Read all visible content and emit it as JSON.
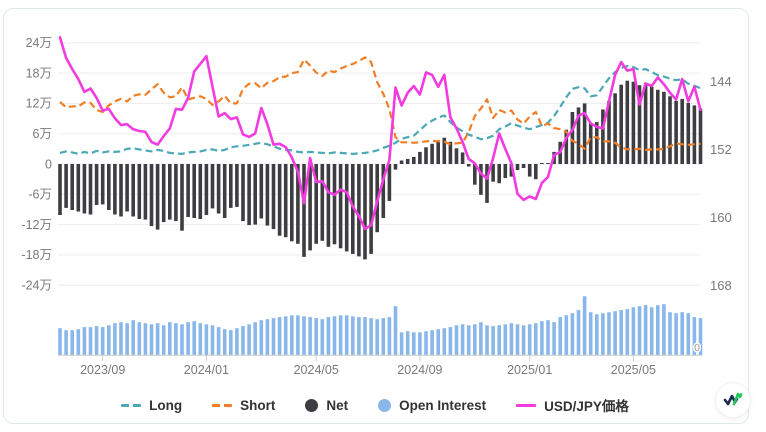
{
  "chart_data": {
    "type": "mixed",
    "x": {
      "dates": [
        "2023/07/18",
        "2023/07/25",
        "2023/08/01",
        "2023/08/08",
        "2023/08/15",
        "2023/08/22",
        "2023/08/29",
        "2023/09/05",
        "2023/09/12",
        "2023/09/19",
        "2023/09/26",
        "2023/10/03",
        "2023/10/10",
        "2023/10/17",
        "2023/10/24",
        "2023/10/31",
        "2023/11/07",
        "2023/11/14",
        "2023/11/21",
        "2023/11/28",
        "2023/12/05",
        "2023/12/12",
        "2023/12/19",
        "2023/12/26",
        "2024/01/02",
        "2024/01/09",
        "2024/01/16",
        "2024/01/23",
        "2024/01/30",
        "2024/02/06",
        "2024/02/13",
        "2024/02/20",
        "2024/02/27",
        "2024/03/05",
        "2024/03/12",
        "2024/03/19",
        "2024/03/26",
        "2024/04/02",
        "2024/04/09",
        "2024/04/16",
        "2024/04/23",
        "2024/04/30",
        "2024/05/07",
        "2024/05/14",
        "2024/05/21",
        "2024/05/28",
        "2024/06/04",
        "2024/06/11",
        "2024/06/18",
        "2024/06/25",
        "2024/07/02",
        "2024/07/09",
        "2024/07/16",
        "2024/07/23",
        "2024/07/30",
        "2024/08/06",
        "2024/08/13",
        "2024/08/20",
        "2024/08/27",
        "2024/09/03",
        "2024/09/10",
        "2024/09/17",
        "2024/09/24",
        "2024/10/01",
        "2024/10/08",
        "2024/10/15",
        "2024/10/22",
        "2024/10/29",
        "2024/11/05",
        "2024/11/12",
        "2024/11/19",
        "2024/11/26",
        "2024/12/03",
        "2024/12/10",
        "2024/12/17",
        "2024/12/24",
        "2024/12/31",
        "2025/01/07",
        "2025/01/14",
        "2025/01/21",
        "2025/01/28",
        "2025/02/04",
        "2025/02/11",
        "2025/02/18",
        "2025/02/25",
        "2025/03/04",
        "2025/03/11",
        "2025/03/18",
        "2025/03/25",
        "2025/04/01",
        "2025/04/08",
        "2025/04/15",
        "2025/04/22",
        "2025/04/29",
        "2025/05/06",
        "2025/05/13",
        "2025/05/20",
        "2025/05/27",
        "2025/06/03",
        "2025/06/10",
        "2025/06/17",
        "2025/06/24",
        "2025/07/01",
        "2025/07/08",
        "2025/07/15",
        "2025/07/22"
      ],
      "tick_labels": [
        "2023/09",
        "2024/01",
        "2024/05",
        "2024/09",
        "2025/01",
        "2025/05"
      ],
      "tick_indices": [
        7,
        24,
        42,
        59,
        77,
        94
      ]
    },
    "left_axis": {
      "unit": "万",
      "ticks": [
        "24万",
        "18万",
        "12万",
        "6万",
        "0",
        "-6万",
        "-12万",
        "-18万",
        "-24万"
      ],
      "tick_values": [
        24,
        18,
        12,
        6,
        0,
        -6,
        -12,
        -18,
        -24
      ]
    },
    "right_axis": {
      "ticks": [
        144,
        152,
        160,
        168
      ],
      "inverted": true
    },
    "oi_axis": {
      "min_label": "0"
    },
    "series": [
      {
        "name": "Long",
        "type": "line",
        "style": "dashed",
        "axis": "left",
        "color": "#4BA8B6",
        "values": [
          2.2,
          2.5,
          2.3,
          2.0,
          2.4,
          2.1,
          2.6,
          2.3,
          2.5,
          2.4,
          2.5,
          3.0,
          3.1,
          2.9,
          2.7,
          2.5,
          2.8,
          2.6,
          2.2,
          2.1,
          2.0,
          2.3,
          2.4,
          2.5,
          2.8,
          2.9,
          2.6,
          2.8,
          3.3,
          3.5,
          3.6,
          3.8,
          4.0,
          4.2,
          3.9,
          3.5,
          3.0,
          2.8,
          2.7,
          2.4,
          2.3,
          2.4,
          2.3,
          2.2,
          2.1,
          2.3,
          2.2,
          2.1,
          2.0,
          2.1,
          2.2,
          2.4,
          2.7,
          3.2,
          3.6,
          4.2,
          5.0,
          5.3,
          5.6,
          6.7,
          7.8,
          8.6,
          9.2,
          9.6,
          8.3,
          7.2,
          6.5,
          5.8,
          5.4,
          4.9,
          5.1,
          5.6,
          6.9,
          7.4,
          8.1,
          7.6,
          7.2,
          6.9,
          7.3,
          7.7,
          8.2,
          9.5,
          11.3,
          13.2,
          14.9,
          15.2,
          15.0,
          13.4,
          13.6,
          15.3,
          17.0,
          18.2,
          19.0,
          19.4,
          19.2,
          18.6,
          18.8,
          18.2,
          17.6,
          17.3,
          16.9,
          16.6,
          16.8,
          15.9,
          15.5,
          15.0
        ]
      },
      {
        "name": "Short",
        "type": "line",
        "style": "dashed",
        "axis": "left",
        "color": "#F07E26",
        "values": [
          12.3,
          11.2,
          11.4,
          11.4,
          12.2,
          12.1,
          10.7,
          10.3,
          11.6,
          12.4,
          12.9,
          12.4,
          13.5,
          13.8,
          13.7,
          14.8,
          15.8,
          14.1,
          13.2,
          13.4,
          15.2,
          12.8,
          13.1,
          13.4,
          12.9,
          11.7,
          12.4,
          13.5,
          12.0,
          12.0,
          14.9,
          15.9,
          16.0,
          15.0,
          16.1,
          16.4,
          17.2,
          17.3,
          18.0,
          18.2,
          20.7,
          19.5,
          18.1,
          17.4,
          18.5,
          18.2,
          18.9,
          19.4,
          19.8,
          20.4,
          21.1,
          20.2,
          16.2,
          13.9,
          10.9,
          5.3,
          4.3,
          4.3,
          4.2,
          4.3,
          4.5,
          4.6,
          4.5,
          4.4,
          3.9,
          4.1,
          4.2,
          6.3,
          9.5,
          11.0,
          12.8,
          9.1,
          10.7,
          10.2,
          10.6,
          8.8,
          8.0,
          9.4,
          10.3,
          7.5,
          8.0,
          7.1,
          6.9,
          6.4,
          4.6,
          4.0,
          3.0,
          5.3,
          5.3,
          4.5,
          4.5,
          4.2,
          3.3,
          2.9,
          2.9,
          3.0,
          2.8,
          2.9,
          2.9,
          3.0,
          3.5,
          4.1,
          3.9,
          3.8,
          3.9,
          4.0
        ]
      },
      {
        "name": "Net",
        "type": "bar",
        "axis": "left",
        "color": "#3E3E42",
        "values": [
          -10.1,
          -8.7,
          -9.1,
          -9.4,
          -9.8,
          -10.0,
          -8.1,
          -8.0,
          -9.1,
          -10.0,
          -10.4,
          -9.4,
          -10.4,
          -10.9,
          -11.0,
          -12.3,
          -13.0,
          -11.5,
          -11.0,
          -11.3,
          -13.2,
          -10.5,
          -10.7,
          -10.9,
          -10.1,
          -8.8,
          -9.8,
          -10.7,
          -8.7,
          -8.5,
          -11.3,
          -12.1,
          -12.0,
          -10.8,
          -12.2,
          -12.9,
          -14.2,
          -14.5,
          -15.3,
          -15.8,
          -18.4,
          -17.1,
          -15.8,
          -15.2,
          -16.4,
          -15.9,
          -16.7,
          -17.3,
          -17.8,
          -18.3,
          -18.9,
          -17.8,
          -13.5,
          -10.7,
          -7.3,
          -1.1,
          0.7,
          1.0,
          1.4,
          2.4,
          3.3,
          4.0,
          4.7,
          5.2,
          4.4,
          3.1,
          2.3,
          -0.5,
          -4.1,
          -6.1,
          -7.7,
          -3.5,
          -3.8,
          -2.8,
          -2.5,
          -1.2,
          -0.8,
          -2.5,
          -3.0,
          0.2,
          0.2,
          2.4,
          4.4,
          6.8,
          10.3,
          11.2,
          12.0,
          8.1,
          8.3,
          10.8,
          12.5,
          14.0,
          15.7,
          16.5,
          16.3,
          15.6,
          16.0,
          15.3,
          14.7,
          14.3,
          13.4,
          12.5,
          12.9,
          12.1,
          11.6,
          11.0
        ]
      },
      {
        "name": "Open Interest",
        "type": "bar",
        "axis": "oi",
        "color": "#8AB7E9",
        "values": [
          15.9,
          14.7,
          14.7,
          15.3,
          16.5,
          16.5,
          17.1,
          16.5,
          17.6,
          18.8,
          19.4,
          18.8,
          20.6,
          19.4,
          18.8,
          18.2,
          18.8,
          17.6,
          19.4,
          18.8,
          18.2,
          19.4,
          20.0,
          18.8,
          18.2,
          17.6,
          16.5,
          15.3,
          14.7,
          15.9,
          17.1,
          18.2,
          19.4,
          20.6,
          21.2,
          21.8,
          22.4,
          22.9,
          23.5,
          23.5,
          22.9,
          22.4,
          21.8,
          21.2,
          22.4,
          22.9,
          23.5,
          23.5,
          22.9,
          22.4,
          22.4,
          21.8,
          21.2,
          21.8,
          22.4,
          28.8,
          13.5,
          14.1,
          13.5,
          13.5,
          14.1,
          14.7,
          15.3,
          15.9,
          16.5,
          17.6,
          18.2,
          17.6,
          18.2,
          19.4,
          17.6,
          17.1,
          17.6,
          18.2,
          18.8,
          18.2,
          17.6,
          18.2,
          18.8,
          20.0,
          20.6,
          19.4,
          22.4,
          23.5,
          24.7,
          26.5,
          34.7,
          25.3,
          24.1,
          24.7,
          25.3,
          25.9,
          26.5,
          27.1,
          28.2,
          28.8,
          29.4,
          28.2,
          29.4,
          30.0,
          25.3,
          24.7,
          25.3,
          24.7,
          22.4,
          21.8
        ]
      },
      {
        "name": "USD/JPY価格",
        "type": "line",
        "style": "solid",
        "axis": "right",
        "color": "#F23BE0",
        "values": [
          138.8,
          141.2,
          142.5,
          143.7,
          145.2,
          144.8,
          145.9,
          147.4,
          147.2,
          148.3,
          149.1,
          149.0,
          149.6,
          149.8,
          149.9,
          151.1,
          151.4,
          150.4,
          149.5,
          147.2,
          147.3,
          145.9,
          142.8,
          141.9,
          141.0,
          144.6,
          148.1,
          147.7,
          148.4,
          148.2,
          150.2,
          150.5,
          150.1,
          147.1,
          149.0,
          151.4,
          151.3,
          151.7,
          152.9,
          154.6,
          158.3,
          153.0,
          155.8,
          155.7,
          157.0,
          157.3,
          156.7,
          157.0,
          158.7,
          159.8,
          161.3,
          160.9,
          158.1,
          155.5,
          153.2,
          144.7,
          146.8,
          145.3,
          144.5,
          145.5,
          142.9,
          143.2,
          144.6,
          143.2,
          148.2,
          149.5,
          151.1,
          153.1,
          153.6,
          154.8,
          155.4,
          153.0,
          150.1,
          151.9,
          153.6,
          157.2,
          157.9,
          157.5,
          157.8,
          155.9,
          155.2,
          152.6,
          152.3,
          150.6,
          149.7,
          148.0,
          147.7,
          148.9,
          149.3,
          149.5,
          146.3,
          143.2,
          141.7,
          142.7,
          142.5,
          146.7,
          144.2,
          144.5,
          143.5,
          144.3,
          145.3,
          146.1,
          143.7,
          146.3,
          144.6,
          147.3
        ]
      }
    ],
    "legend": [
      {
        "label": "Long",
        "marker": "dash",
        "color": "#4BA8B6"
      },
      {
        "label": "Short",
        "marker": "dash",
        "color": "#F07E26"
      },
      {
        "label": "Net",
        "marker": "circle",
        "color": "#3E3E42"
      },
      {
        "label": "Open Interest",
        "marker": "circle",
        "color": "#8AB7E9"
      },
      {
        "label": "USD/JPY価格",
        "marker": "line",
        "color": "#F23BE0"
      }
    ],
    "colors": {
      "grid": "#ededed",
      "axis_text": "#7a7a7a",
      "baseline": "#cccccc",
      "oi_zero_label": "#9a9a9a",
      "legend_text": "#333333",
      "card_border": "#dfe8e4"
    }
  },
  "logo": {
    "name": "zigzag-chart-logo"
  }
}
